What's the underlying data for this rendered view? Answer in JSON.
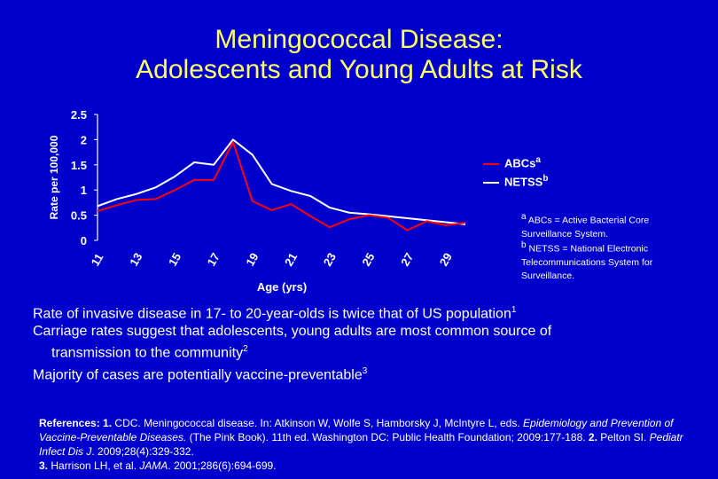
{
  "slide": {
    "title_line1": "Meningococcal Disease:",
    "title_line2": "Adolescents and Young Adults at Risk",
    "colors": {
      "background": "#0000cc",
      "title": "#ffff66",
      "text": "#ffffff",
      "abcs": "#ff0000",
      "netss": "#ffffff"
    }
  },
  "chart_data": {
    "type": "line",
    "xlabel": "Age (yrs)",
    "ylabel": "Rate per 100,000",
    "xlim": [
      11,
      30
    ],
    "ylim": [
      0,
      2.5
    ],
    "xticks": [
      "11",
      "13",
      "15",
      "17",
      "19",
      "21",
      "23",
      "25",
      "27",
      "29"
    ],
    "yticks": [
      "0",
      "0.5",
      "1",
      "1.5",
      "2",
      "2.5"
    ],
    "series": [
      {
        "name": "ABCs",
        "sup": "a",
        "color": "#ff0000",
        "x": [
          11,
          12,
          13,
          14,
          15,
          16,
          17,
          18,
          19,
          20,
          21,
          22,
          23,
          24,
          25,
          26,
          27,
          28,
          29,
          30
        ],
        "y": [
          0.58,
          0.7,
          0.8,
          0.82,
          1.0,
          1.2,
          1.2,
          1.95,
          0.78,
          0.6,
          0.72,
          0.48,
          0.26,
          0.42,
          0.5,
          0.45,
          0.2,
          0.38,
          0.3,
          0.35
        ]
      },
      {
        "name": "NETSS",
        "sup": "b",
        "color": "#ffffff",
        "x": [
          11,
          12,
          13,
          14,
          15,
          16,
          17,
          18,
          19,
          20,
          21,
          22,
          23,
          24,
          25,
          26,
          27,
          28,
          29,
          30
        ],
        "y": [
          0.68,
          0.82,
          0.92,
          1.05,
          1.27,
          1.55,
          1.5,
          2.0,
          1.7,
          1.12,
          0.98,
          0.88,
          0.65,
          0.55,
          0.52,
          0.48,
          0.44,
          0.4,
          0.36,
          0.32
        ]
      }
    ],
    "legend_position": "right",
    "grid": false
  },
  "footnotes": {
    "a": "ABCs = Active Bacterial Core Surveillance System.",
    "b": "NETSS = National Electronic Telecommunications System for Surveillance."
  },
  "bullets": {
    "b1_text": "Rate of invasive disease in 17- to 20-year-olds is twice that of US population",
    "b1_ref": "1",
    "b2_line1": "Carriage rates suggest that adolescents, young adults are most common source of",
    "b2_line2": "transmission to the community",
    "b2_ref": "2",
    "b3_text": "Majority of cases are potentially vaccine-preventable",
    "b3_ref": "3"
  },
  "references": {
    "label": "References:",
    "r1_num": "1.",
    "r1_text": " CDC. Meningococcal disease. In: Atkinson W, Wolfe S, Hamborsky J, McIntyre L, eds. ",
    "r1_italic": "Epidemiology and Prevention of Vaccine-Preventable Diseases.",
    "r1_tail": " (The Pink Book). 11th ed. Washington DC: Public Health Foundation; 2009:177-188. ",
    "r2_num": "2.",
    "r2_text": " Pelton SI. ",
    "r2_italic": "Pediatr Infect Dis J",
    "r2_tail": ". 2009;28(4):329-332.",
    "r3_num": "3.",
    "r3_text": " Harrison LH, et al. ",
    "r3_italic": "JAMA",
    "r3_tail": ". 2001;286(6):694-699."
  }
}
